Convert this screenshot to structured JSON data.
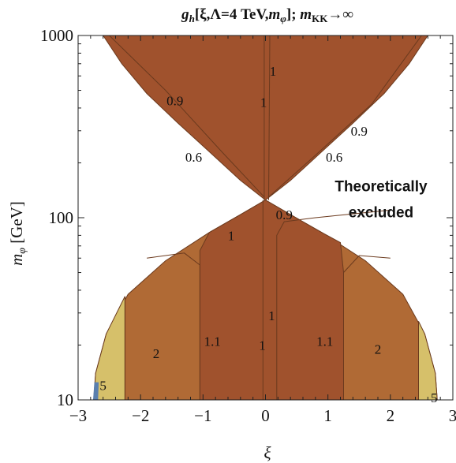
{
  "chart_data": {
    "type": "contour",
    "title": "g_h[ξ,Λ=4 TeV,m_φ]; m_KK→∞",
    "title_parts": {
      "g": "g",
      "sub_h": "h",
      "args": "[ξ,Λ=4 TeV,",
      "m": "m",
      "sub_phi": "φ",
      "tail": "]; ",
      "m2": "m",
      "sub_kk": "KK",
      "arrow": "→∞"
    },
    "xlabel": "ξ",
    "ylabel": "m_φ [GeV]",
    "ylabel_parts": {
      "m": "m",
      "sub": "φ",
      "unit": " [GeV]"
    },
    "xlim": [
      -3.0,
      3.0
    ],
    "ylim": [
      10,
      1000
    ],
    "y_scale": "log",
    "x_ticks": [
      -3,
      -2,
      -1,
      0,
      1,
      2,
      3
    ],
    "x_tick_labels": [
      "−3",
      "−2",
      "−1",
      "0",
      "1",
      "2",
      "3"
    ],
    "y_ticks": [
      10,
      100,
      1000
    ],
    "y_tick_labels": [
      "10",
      "100",
      "1000"
    ],
    "allowed_boundary": {
      "upper_lobe": [
        {
          "x": -2.6,
          "y": 1000
        },
        {
          "x": -2.3,
          "y": 700
        },
        {
          "x": -1.9,
          "y": 480
        },
        {
          "x": -1.4,
          "y": 330
        },
        {
          "x": -0.9,
          "y": 230
        },
        {
          "x": -0.4,
          "y": 160
        },
        {
          "x": 0.0,
          "y": 125
        },
        {
          "x": 0.4,
          "y": 160
        },
        {
          "x": 0.9,
          "y": 230
        },
        {
          "x": 1.4,
          "y": 330
        },
        {
          "x": 1.9,
          "y": 480
        },
        {
          "x": 2.3,
          "y": 700
        },
        {
          "x": 2.6,
          "y": 1000
        }
      ],
      "lower_lobe": [
        {
          "x": -2.75,
          "y": 10
        },
        {
          "x": -2.72,
          "y": 14
        },
        {
          "x": -2.55,
          "y": 23
        },
        {
          "x": -2.2,
          "y": 38
        },
        {
          "x": -1.6,
          "y": 58
        },
        {
          "x": -0.9,
          "y": 83
        },
        {
          "x": -0.4,
          "y": 104
        },
        {
          "x": 0.0,
          "y": 125
        },
        {
          "x": 0.4,
          "y": 104
        },
        {
          "x": 0.9,
          "y": 83
        },
        {
          "x": 1.6,
          "y": 58
        },
        {
          "x": 2.2,
          "y": 38
        },
        {
          "x": 2.55,
          "y": 23
        },
        {
          "x": 2.72,
          "y": 14
        },
        {
          "x": 2.75,
          "y": 10
        }
      ]
    },
    "regions": [
      {
        "range": "<1.1",
        "color": "#a0522d"
      },
      {
        "range": "1.1–2",
        "color": "#b06a35"
      },
      {
        "range": "2–5",
        "color": "#d6c06a"
      },
      {
        "range": ">5",
        "color": "#5a7fae"
      }
    ],
    "contour_line_color": "#6b3a1e",
    "contour_labels": [
      {
        "text": "1",
        "x": 0.12,
        "y": 640
      },
      {
        "text": "1",
        "x": -0.03,
        "y": 430
      },
      {
        "text": "0.9",
        "x": -1.45,
        "y": 440
      },
      {
        "text": "0.9",
        "x": 1.5,
        "y": 300
      },
      {
        "text": "0.6",
        "x": -1.15,
        "y": 215
      },
      {
        "text": "0.6",
        "x": 1.1,
        "y": 215
      },
      {
        "text": "0.9",
        "x": 0.3,
        "y": 104
      },
      {
        "text": "1",
        "x": -0.55,
        "y": 80
      },
      {
        "text": "1",
        "x": 0.1,
        "y": 29
      },
      {
        "text": "1",
        "x": -0.05,
        "y": 20
      },
      {
        "text": "1.1",
        "x": -0.85,
        "y": 21
      },
      {
        "text": "1.1",
        "x": 0.95,
        "y": 21
      },
      {
        "text": "2",
        "x": -1.75,
        "y": 18
      },
      {
        "text": "2",
        "x": 1.8,
        "y": 19
      },
      {
        "text": "5",
        "x": -2.6,
        "y": 12
      },
      {
        "text": "5",
        "x": 2.7,
        "y": 10.3
      }
    ],
    "annotations": [
      {
        "text": "Theoretically",
        "x": 1.85,
        "y": 150
      },
      {
        "text": "excluded",
        "x": 1.85,
        "y": 108
      }
    ]
  }
}
